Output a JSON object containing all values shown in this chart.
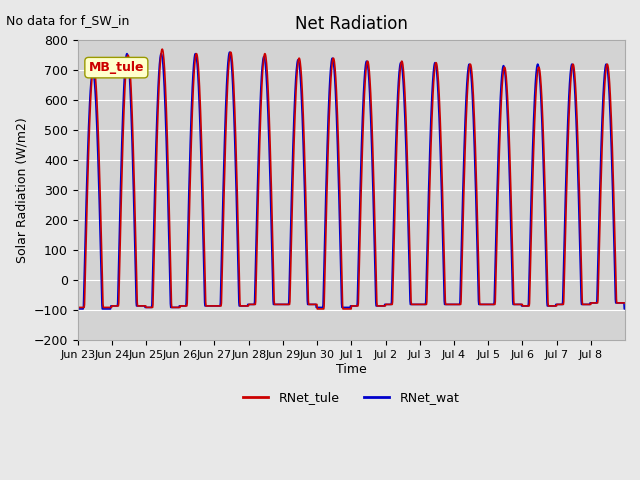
{
  "title": "Net Radiation",
  "subtitle": "No data for f_SW_in",
  "ylabel": "Solar Radiation (W/m2)",
  "xlabel": "Time",
  "ylim": [
    -200,
    800
  ],
  "yticks": [
    -200,
    -100,
    0,
    100,
    200,
    300,
    400,
    500,
    600,
    700,
    800
  ],
  "xtick_labels": [
    "Jun 23",
    "Jun 24",
    "Jun 25",
    "Jun 26",
    "Jun 27",
    "Jun 28",
    "Jun 29",
    "Jun 30",
    "Jul 1",
    "Jul 2",
    "Jul 3",
    "Jul 4",
    "Jul 5",
    "Jul 6",
    "Jul 7",
    "Jul 8"
  ],
  "legend_label_tule": "RNet_tule",
  "legend_label_wat": "RNet_wat",
  "color_tule": "#cc0000",
  "color_wat": "#0000cc",
  "station_label": "MB_tule",
  "background_color": "#e8e8e8",
  "plot_bg_color": "#d3d3d3",
  "grid_color": "#ffffff",
  "peaks_tule": [
    710,
    750,
    770,
    755,
    760,
    755,
    740,
    740,
    730,
    730,
    725,
    720,
    710,
    710,
    720,
    720
  ],
  "peaks_wat": [
    695,
    755,
    755,
    755,
    760,
    745,
    735,
    740,
    730,
    725,
    725,
    720,
    715,
    720,
    720,
    720
  ],
  "night_tule": [
    -90,
    -85,
    -90,
    -85,
    -85,
    -80,
    -80,
    -95,
    -85,
    -80,
    -80,
    -80,
    -80,
    -85,
    -80,
    -75
  ],
  "night_wat": [
    -95,
    -85,
    -90,
    -85,
    -85,
    -80,
    -80,
    -90,
    -85,
    -80,
    -80,
    -80,
    -80,
    -85,
    -80,
    -75
  ],
  "num_days": 16,
  "pts_per_day": 100,
  "wat_shift": -3
}
